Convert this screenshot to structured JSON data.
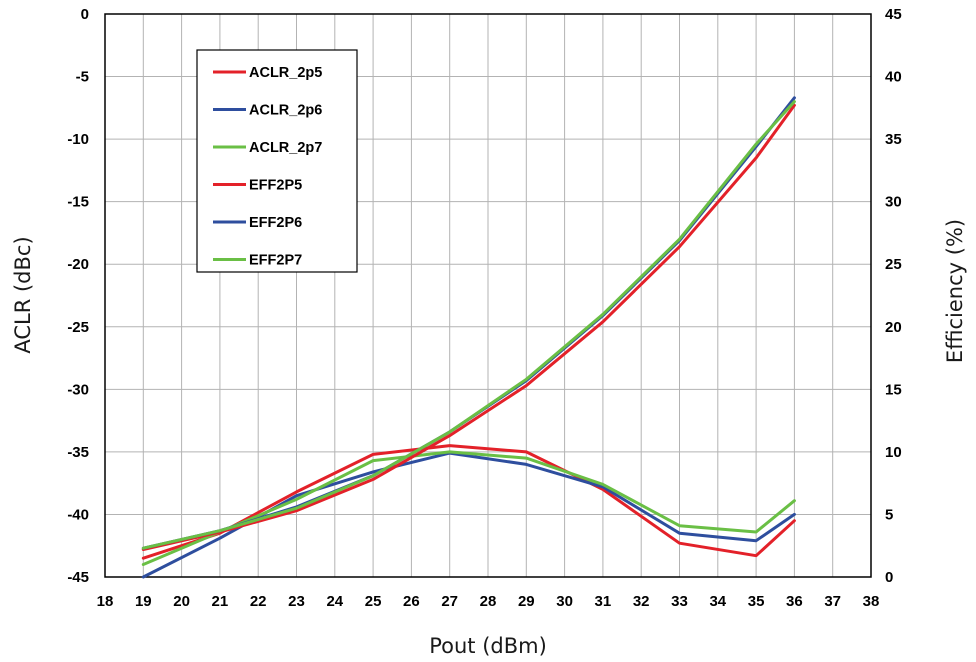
{
  "chart_data": {
    "type": "line",
    "title": "",
    "xlabel": "Pout (dBm)",
    "ylabel_left": "ACLR (dBc)",
    "ylabel_right": "Efficiency (%)",
    "xlim": [
      18,
      38
    ],
    "x_ticks": [
      18,
      19,
      20,
      21,
      22,
      23,
      24,
      25,
      26,
      27,
      28,
      29,
      30,
      31,
      32,
      33,
      34,
      35,
      36,
      37,
      38
    ],
    "ylim_left": [
      -45,
      0
    ],
    "y_ticks_left": [
      0,
      -5,
      -10,
      -15,
      -20,
      -25,
      -30,
      -35,
      -40,
      -45
    ],
    "ylim_right": [
      0,
      45
    ],
    "y_ticks_right": [
      45,
      40,
      35,
      30,
      25,
      20,
      15,
      10,
      5,
      0
    ],
    "grid": true,
    "legend_position": "top-left",
    "colors": {
      "red": "#e32129",
      "blue": "#2e4e9e",
      "green": "#6abf45"
    },
    "series": [
      {
        "name": "ACLR_2p5",
        "axis": "left",
        "color": "#e32129",
        "x": [
          19,
          21,
          23,
          25,
          27,
          29,
          31,
          33,
          35,
          36
        ],
        "y": [
          -43.5,
          -41.5,
          -38.2,
          -35.2,
          -34.5,
          -35.0,
          -38.0,
          -42.3,
          -43.3,
          -40.5
        ]
      },
      {
        "name": "ACLR_2p6",
        "axis": "left",
        "color": "#2e4e9e",
        "x": [
          19,
          21,
          23,
          25,
          27,
          29,
          31,
          33,
          35,
          36
        ],
        "y": [
          -45.0,
          -41.9,
          -38.5,
          -36.6,
          -35.1,
          -36.0,
          -37.8,
          -41.5,
          -42.1,
          -40.0
        ]
      },
      {
        "name": "ACLR_2p7",
        "axis": "left",
        "color": "#6abf45",
        "x": [
          19,
          21,
          23,
          25,
          27,
          29,
          31,
          33,
          35,
          36
        ],
        "y": [
          -44.0,
          -41.4,
          -38.8,
          -35.7,
          -35.0,
          -35.5,
          -37.6,
          -40.9,
          -41.4,
          -38.9
        ]
      },
      {
        "name": "EFF2P5",
        "axis": "right",
        "color": "#e32129",
        "x": [
          19,
          21,
          23,
          25,
          27,
          29,
          31,
          33,
          35,
          36
        ],
        "y": [
          2.2,
          3.6,
          5.3,
          7.8,
          11.3,
          15.3,
          20.4,
          26.4,
          33.5,
          37.7
        ]
      },
      {
        "name": "EFF2P6",
        "axis": "right",
        "color": "#2e4e9e",
        "x": [
          19,
          21,
          23,
          25,
          27,
          29,
          31,
          33,
          35,
          36
        ],
        "y": [
          2.3,
          3.7,
          5.6,
          8.1,
          11.6,
          15.7,
          20.9,
          26.9,
          34.4,
          38.3
        ]
      },
      {
        "name": "EFF2P7",
        "axis": "right",
        "color": "#6abf45",
        "x": [
          19,
          21,
          23,
          25,
          27,
          29,
          31,
          33,
          35,
          36
        ],
        "y": [
          2.3,
          3.7,
          5.5,
          8.1,
          11.6,
          15.8,
          21.0,
          27.0,
          34.6,
          38.0
        ]
      }
    ]
  }
}
